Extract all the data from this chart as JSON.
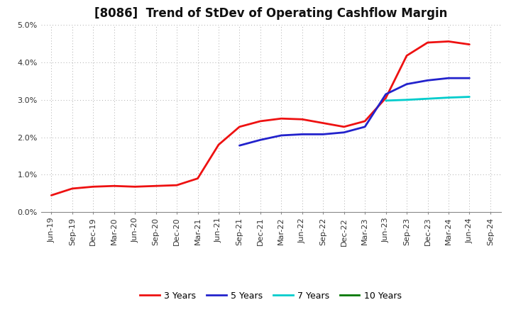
{
  "title": "[8086]  Trend of StDev of Operating Cashflow Margin",
  "x_labels": [
    "Jun-19",
    "Sep-19",
    "Dec-19",
    "Mar-20",
    "Jun-20",
    "Sep-20",
    "Dec-20",
    "Mar-21",
    "Jun-21",
    "Sep-21",
    "Dec-21",
    "Mar-22",
    "Jun-22",
    "Sep-22",
    "Dec-22",
    "Mar-23",
    "Jun-23",
    "Sep-23",
    "Dec-23",
    "Mar-24",
    "Jun-24",
    "Sep-24"
  ],
  "series": {
    "3 Years": {
      "color": "#EE1111",
      "data_x": [
        0,
        1,
        2,
        3,
        4,
        5,
        6,
        7,
        8,
        9,
        10,
        11,
        12,
        13,
        14,
        15,
        16,
        17,
        18,
        19,
        20
      ],
      "data_y": [
        0.0045,
        0.0063,
        0.0068,
        0.007,
        0.0068,
        0.007,
        0.0072,
        0.009,
        0.018,
        0.0228,
        0.0243,
        0.025,
        0.0248,
        0.0238,
        0.0228,
        0.0243,
        0.0305,
        0.0418,
        0.0453,
        0.0456,
        0.0448
      ]
    },
    "5 Years": {
      "color": "#2222CC",
      "data_x": [
        9,
        10,
        11,
        12,
        13,
        14,
        15,
        16,
        17,
        18,
        19,
        20
      ],
      "data_y": [
        0.0178,
        0.0193,
        0.0205,
        0.0208,
        0.0208,
        0.0213,
        0.0228,
        0.0315,
        0.0342,
        0.0352,
        0.0358,
        0.0358
      ]
    },
    "7 Years": {
      "color": "#00CCCC",
      "data_x": [
        16,
        17,
        18,
        19,
        20
      ],
      "data_y": [
        0.0298,
        0.03,
        0.0303,
        0.0306,
        0.0308
      ]
    },
    "10 Years": {
      "color": "#007700",
      "data_x": [],
      "data_y": []
    }
  },
  "ylim": [
    0.0,
    0.05
  ],
  "yticks": [
    0.0,
    0.01,
    0.02,
    0.03,
    0.04,
    0.05
  ],
  "ytick_labels": [
    "0.0%",
    "1.0%",
    "2.0%",
    "3.0%",
    "4.0%",
    "5.0%"
  ],
  "legend_labels": [
    "3 Years",
    "5 Years",
    "7 Years",
    "10 Years"
  ],
  "legend_colors": [
    "#EE1111",
    "#2222CC",
    "#00CCCC",
    "#007700"
  ],
  "bg_color": "#FFFFFF",
  "plot_bg_color": "#FFFFFF",
  "grid_color": "#AAAAAA",
  "title_fontsize": 12,
  "label_fontsize": 8
}
